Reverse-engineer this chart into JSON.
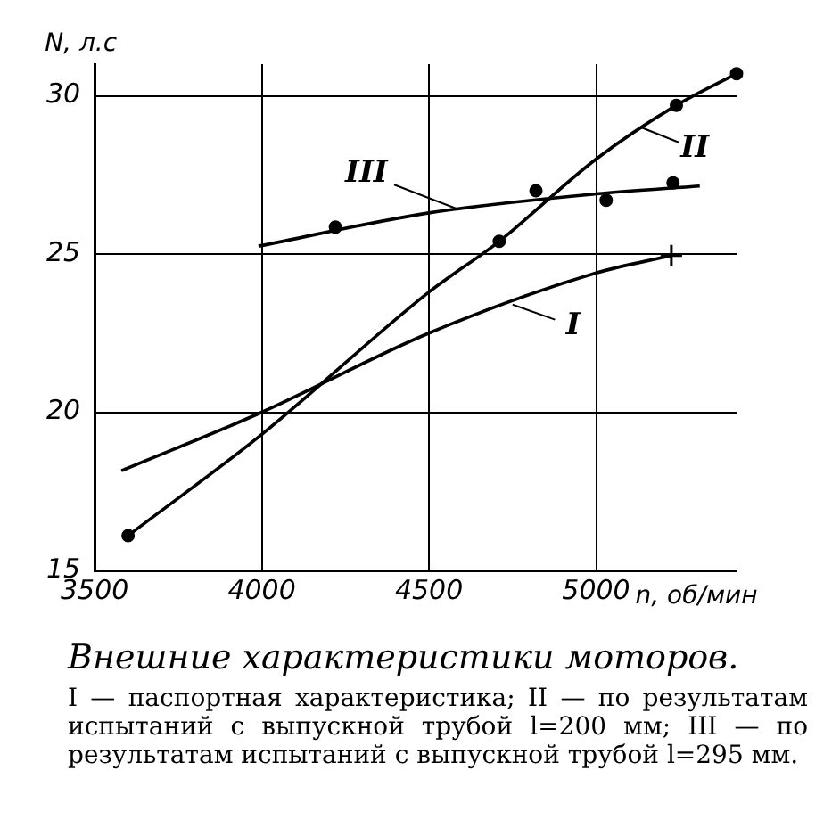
{
  "chart_data": {
    "type": "line",
    "title": "Внешние характеристики моторов.",
    "xlabel": "n, об/мин",
    "ylabel": "N, л.с",
    "xlim": [
      3500,
      5420
    ],
    "ylim": [
      15,
      31
    ],
    "xticks": [
      3500,
      4000,
      4500,
      5000
    ],
    "yticks": [
      15,
      20,
      25,
      30
    ],
    "grid": true,
    "legend": false,
    "series": [
      {
        "color": "#000000",
        "marker": "none",
        "x": [
          3580,
          4000,
          4500,
          5000,
          5225
        ],
        "values": [
          18.15,
          20.0,
          22.5,
          24.4,
          24.95
        ]
      },
      {
        "color": "#000000",
        "marker": "none",
        "x": [
          3600,
          4000,
          4500,
          4710,
          5000,
          5240,
          5420
        ],
        "values": [
          16.1,
          19.3,
          23.8,
          25.4,
          28.0,
          29.7,
          30.7
        ]
      },
      {
        "color": "#000000",
        "marker": "none",
        "x": [
          3990,
          4500,
          5000,
          5310
        ],
        "values": [
          25.25,
          26.3,
          26.9,
          27.15
        ]
      },
      {
        "type": "scatter",
        "color": "#000000",
        "marker": "circle",
        "x": [
          3600,
          4710,
          5240,
          5420
        ],
        "values": [
          16.1,
          25.4,
          29.7,
          30.7
        ]
      },
      {
        "type": "scatter",
        "color": "#000000",
        "marker": "circle",
        "x": [
          4220,
          4820,
          5030,
          5230
        ],
        "values": [
          25.85,
          27.0,
          26.7,
          27.25
        ]
      },
      {
        "type": "scatter",
        "color": "#000000",
        "marker": "cross",
        "x": [
          5225
        ],
        "values": [
          24.95
        ]
      }
    ],
    "annotations": [
      {
        "text": "I",
        "x": 4750,
        "y": 23.4
      },
      {
        "text": "II",
        "x": 5135,
        "y": 29.0
      },
      {
        "text": "III",
        "x": 4590,
        "y": 26.4
      },
      "I — паспортная характеристика; II — по результатам испытаний с выпускной трубой l=200 мм; III — по результатам испытаний с выпускной трубой l=295 мм."
    ]
  }
}
